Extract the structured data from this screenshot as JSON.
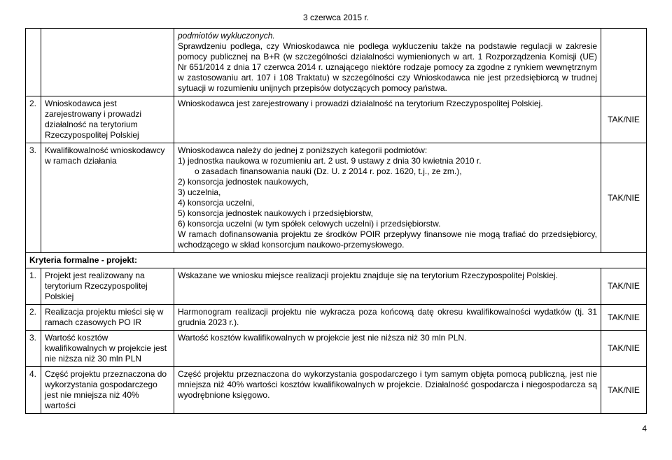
{
  "header_date": "3 czerwca 2015 r.",
  "page_number": "4",
  "row_top": {
    "desc_intro_italic": "podmiotów wykluczonych.",
    "desc_p": "Sprawdzeniu podlega, czy Wnioskodawca nie podlega wykluczeniu także na podstawie regulacji w zakresie pomocy publicznej na B+R (w szczególności działalności wymienionych w art. 1 Rozporządzenia Komisji (UE) Nr 651/2014 z dnia 17 czerwca 2014 r. uznającego niektóre rodzaje pomocy za zgodne z rynkiem wewnętrznym w zastosowaniu art. 107 i 108 Traktatu) w szczególności czy Wnioskodawca nie jest przedsiębiorcą w trudnej sytuacji w rozumieniu unijnych przepisów dotyczących pomocy państwa."
  },
  "row2": {
    "num": "2.",
    "crit": "Wnioskodawca jest zarejestrowany i prowadzi działalność na terytorium Rzeczypospolitej Polskiej",
    "desc": "Wnioskodawca jest zarejestrowany i prowadzi działalność na terytorium Rzeczypospolitej Polskiej.",
    "res": "TAK/NIE"
  },
  "row3": {
    "num": "3.",
    "crit": "Kwalifikowalność wnioskodawcy w ramach działania",
    "desc_lead": "Wnioskodawca należy do jednej z poniższych kategorii podmiotów:",
    "li1a": "1) jednostka naukowa w rozumieniu art. 2 ust. 9 ustawy z dnia 30 kwietnia 2010 r.",
    "li1b": "o zasadach finansowania nauki (Dz. U. z 2014 r. poz. 1620, t.j., ze zm.),",
    "li2": "2) konsorcja jednostek naukowych,",
    "li3": "3) uczelnia,",
    "li4": "4) konsorcja uczelni,",
    "li5": "5) konsorcja jednostek naukowych i przedsiębiorstw,",
    "li6": "6) konsorcja uczelni (w tym spółek celowych uczelni) i przedsiębiorstw.",
    "desc_tail": "W ramach dofinansowania projektu ze środków POIR przepływy finansowe nie mogą trafiać do przedsiębiorcy, wchodzącego w skład konsorcjum naukowo-przemysłowego.",
    "res": "TAK/NIE"
  },
  "section": {
    "label": "Kryteria formalne - projekt:"
  },
  "p1": {
    "num": "1.",
    "crit": "Projekt jest realizowany na terytorium Rzeczypospolitej Polskiej",
    "desc": "Wskazane we wniosku miejsce realizacji projektu znajduje się na terytorium Rzeczypospolitej Polskiej.",
    "res": "TAK/NIE"
  },
  "p2": {
    "num": "2.",
    "crit": "Realizacja projektu mieści się w ramach czasowych PO IR",
    "desc": "Harmonogram realizacji projektu nie wykracza poza końcową datę okresu kwalifikowalności wydatków (tj. 31 grudnia 2023 r.).",
    "res": "TAK/NIE"
  },
  "p3": {
    "num": "3.",
    "crit": "Wartość kosztów kwalifikowalnych w projekcie jest nie niższa niż 30 mln PLN",
    "desc": "Wartość kosztów kwalifikowalnych w projekcie jest nie niższa niż 30 mln PLN.",
    "res": "TAK/NIE"
  },
  "p4": {
    "num": "4.",
    "crit": "Część projektu przeznaczona do wykorzystania gospodarczego jest nie mniejsza niż 40% wartości",
    "desc": "Część projektu przeznaczona do wykorzystania gospodarczego i tym samym objęta pomocą publiczną, jest nie mniejsza niż 40% wartości kosztów kwalifikowalnych w projekcie. Działalność gospodarcza i niegospodarcza są wyodrębnione księgowo.",
    "res": "TAK/NIE"
  }
}
